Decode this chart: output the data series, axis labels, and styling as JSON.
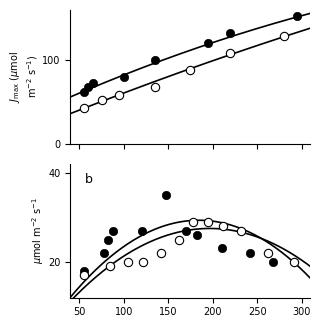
{
  "panel_a": {
    "ylim": [
      0,
      160
    ],
    "yticks": [
      0,
      100
    ],
    "filled_x": [
      55,
      60,
      65,
      100,
      135,
      195,
      220,
      295
    ],
    "filled_y": [
      62,
      67,
      72,
      80,
      100,
      120,
      132,
      152
    ],
    "open_x": [
      55,
      75,
      95,
      135,
      175,
      220,
      280
    ],
    "open_y": [
      42,
      52,
      58,
      68,
      88,
      108,
      128
    ],
    "curve1_pts_x": [
      55,
      100,
      160,
      220,
      295
    ],
    "curve1_pts_y": [
      62,
      82,
      108,
      125,
      152
    ],
    "curve2_pts_x": [
      55,
      100,
      160,
      220,
      280
    ],
    "curve2_pts_y": [
      42,
      60,
      85,
      105,
      128
    ]
  },
  "panel_b": {
    "ylim": [
      12,
      42
    ],
    "yticks": [
      20,
      40
    ],
    "label": "b",
    "filled_x": [
      55,
      78,
      82,
      88,
      120,
      148,
      170,
      182,
      210,
      242,
      268
    ],
    "filled_y": [
      18,
      22,
      25,
      27,
      27,
      35,
      27,
      26,
      23,
      22,
      20
    ],
    "open_x": [
      55,
      85,
      105,
      122,
      142,
      162,
      178,
      195,
      212,
      232,
      262,
      292
    ],
    "open_y": [
      17,
      19,
      20,
      20,
      22,
      25,
      29,
      29,
      28,
      27,
      22,
      20
    ],
    "curve1_x": [
      55,
      120,
      155,
      250,
      295
    ],
    "curve1_y": [
      16,
      24,
      30,
      26,
      19
    ],
    "curve2_x": [
      55,
      130,
      185,
      260,
      295
    ],
    "curve2_y": [
      15,
      22,
      29,
      26,
      20
    ]
  },
  "xlim": [
    40,
    310
  ],
  "xticks": [
    50,
    100,
    150,
    200,
    250,
    300
  ],
  "marker_size": 6,
  "linewidth": 1.2
}
